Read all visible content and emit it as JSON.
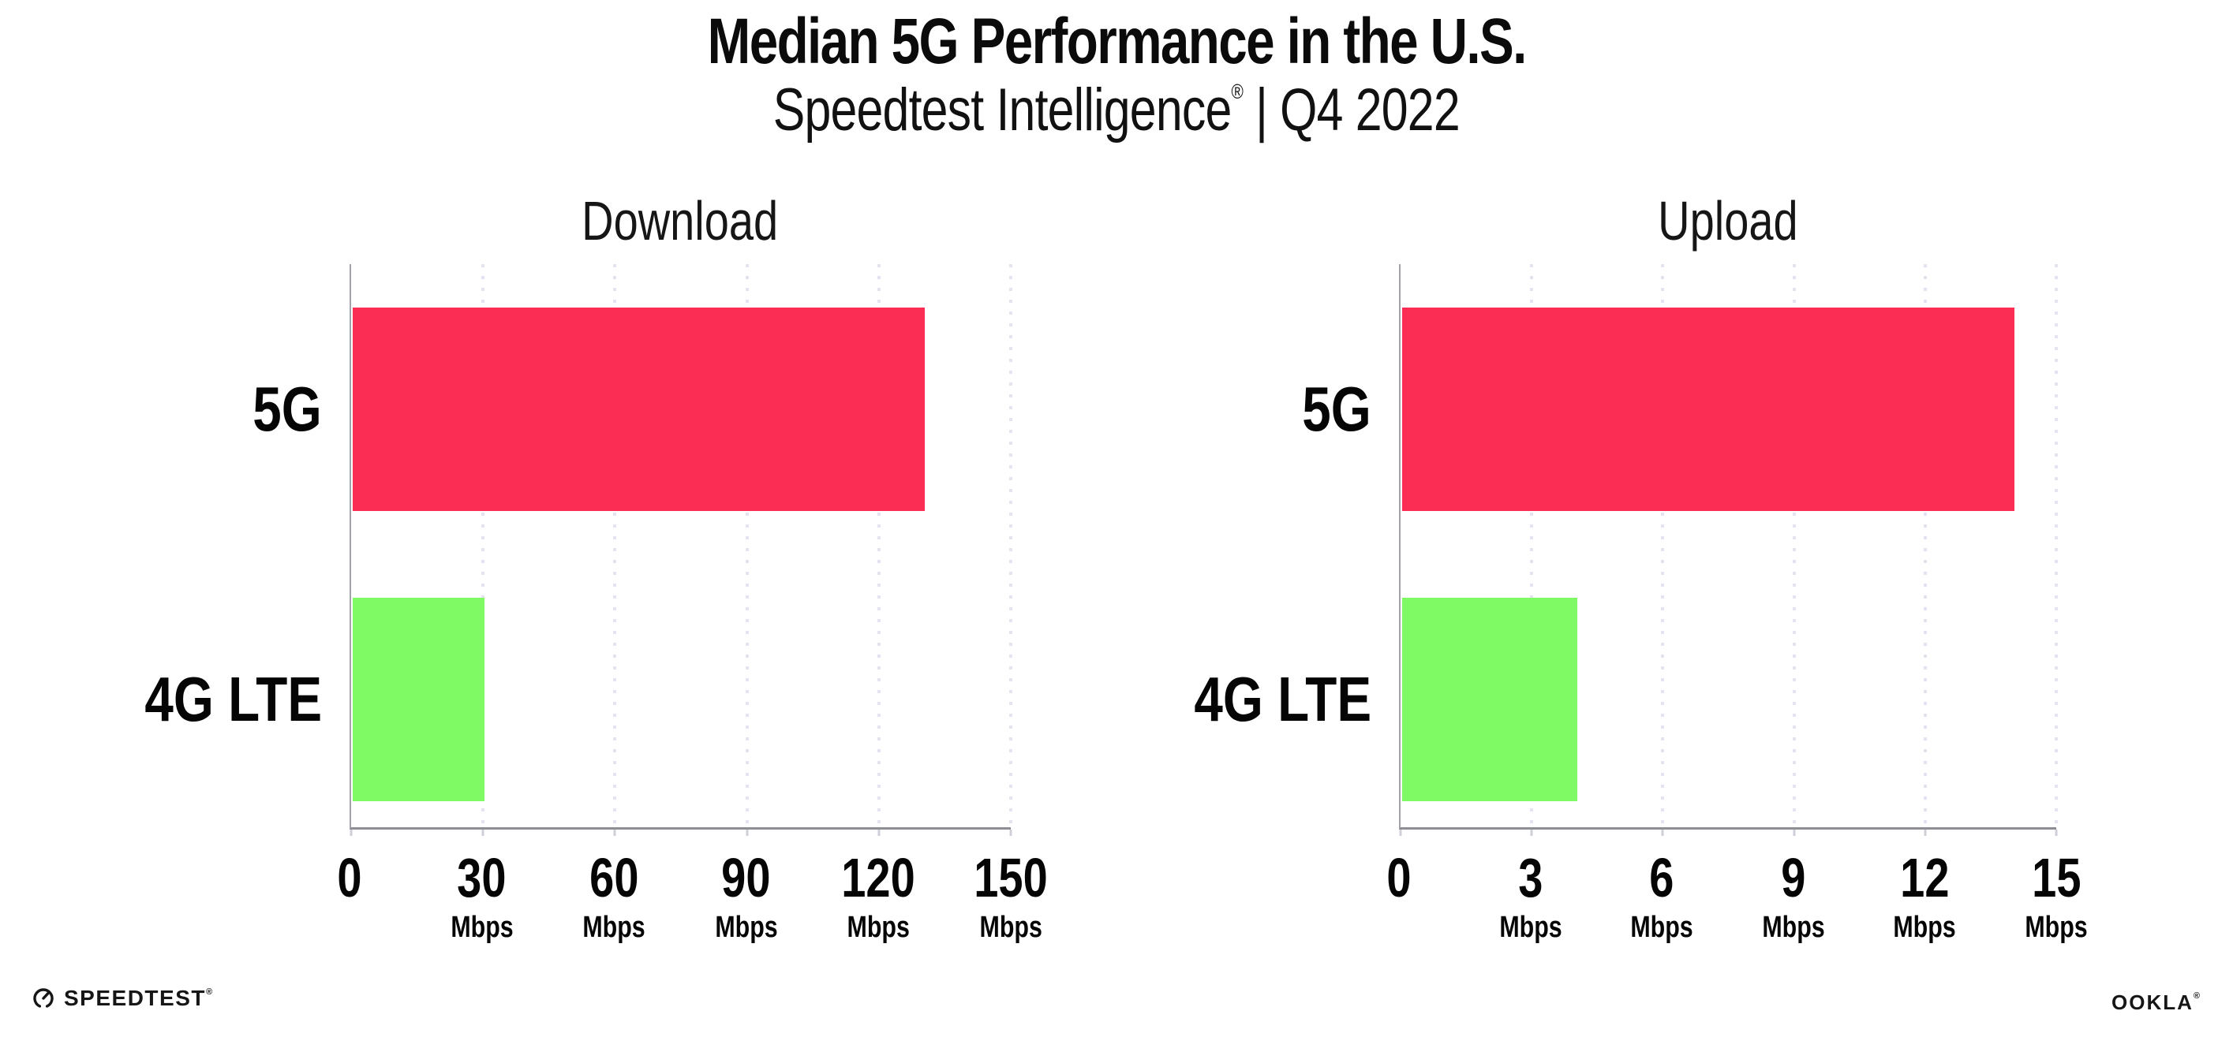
{
  "header": {
    "title": "Median 5G Performance in the U.S.",
    "subtitle_brand": "Speedtest Intelligence",
    "subtitle_reg": "®",
    "subtitle_rest": " | Q4 2022"
  },
  "colors": {
    "bar_5g": "#FC2D55",
    "bar_4g_lte": "#7FFA64",
    "gridline": "#E4E4F0",
    "axis": "#8E8E96",
    "text": "#000000"
  },
  "chart_data": [
    {
      "type": "bar",
      "orientation": "horizontal",
      "title": "Download",
      "categories": [
        "5G",
        "4G LTE"
      ],
      "values": [
        130,
        30
      ],
      "bar_colors": [
        "#FC2D55",
        "#7FFA64"
      ],
      "unit": "Mbps",
      "xlim": [
        0,
        150
      ],
      "xticks": [
        0,
        30,
        60,
        90,
        120,
        150
      ],
      "grid": "vertical-dotted",
      "legend": "none"
    },
    {
      "type": "bar",
      "orientation": "horizontal",
      "title": "Upload",
      "categories": [
        "5G",
        "4G LTE"
      ],
      "values": [
        14,
        4
      ],
      "bar_colors": [
        "#FC2D55",
        "#7FFA64"
      ],
      "unit": "Mbps",
      "xlim": [
        0,
        15
      ],
      "xticks": [
        0,
        3,
        6,
        9,
        12,
        15
      ],
      "grid": "vertical-dotted",
      "legend": "none"
    }
  ],
  "footer": {
    "speedtest_text": "SPEEDTEST",
    "speedtest_reg": "®",
    "ookla_text": "OOKLA",
    "ookla_reg": "®"
  }
}
